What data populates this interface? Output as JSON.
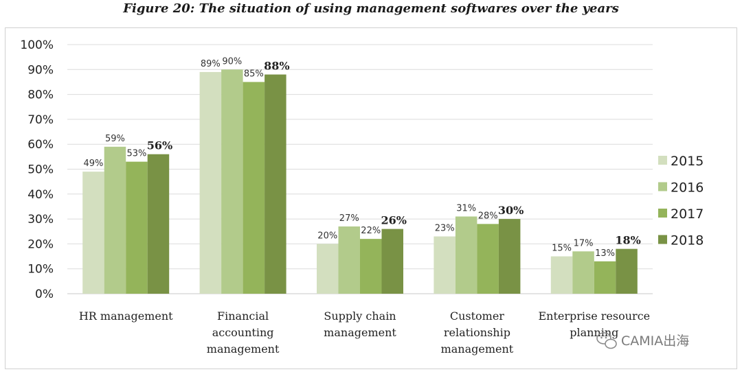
{
  "title": "Figure 20: The situation of using management softwares over the years",
  "watermark": "CAMIA出海",
  "chart_data": {
    "type": "bar",
    "title": "Figure 20: The situation of using management softwares over the years",
    "categories": [
      [
        "HR management"
      ],
      [
        "Financial",
        "accounting",
        "management"
      ],
      [
        "Supply chain",
        "management"
      ],
      [
        "Customer",
        "relationship",
        "management"
      ],
      [
        "Enterprise resource",
        "planning"
      ]
    ],
    "series": [
      {
        "name": "2015",
        "color": "#d3dfbf",
        "values": [
          49,
          89,
          20,
          23,
          15
        ]
      },
      {
        "name": "2016",
        "color": "#b2cb8b",
        "values": [
          59,
          90,
          27,
          31,
          17
        ]
      },
      {
        "name": "2017",
        "color": "#94b45a",
        "values": [
          53,
          85,
          22,
          28,
          13
        ]
      },
      {
        "name": "2018",
        "color": "#799245",
        "values": [
          56,
          88,
          26,
          30,
          18
        ]
      }
    ],
    "y_ticks": [
      "0%",
      "10%",
      "20%",
      "30%",
      "40%",
      "50%",
      "60%",
      "70%",
      "80%",
      "90%",
      "100%"
    ],
    "ylim": [
      0,
      100
    ],
    "value_suffix": "%",
    "grid": true,
    "legend_position": "right",
    "bold_series": "2018"
  }
}
